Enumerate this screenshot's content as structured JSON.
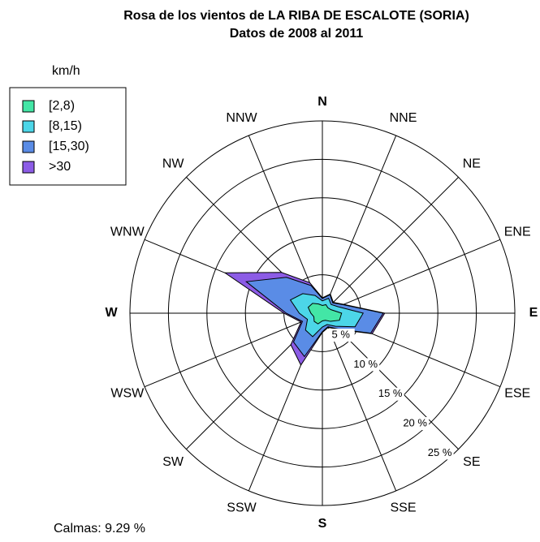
{
  "chart_data": {
    "type": "windrose",
    "title": "Rosa de los vientos de LA RIBA DE ESCALOTE (SORIA)",
    "subtitle": "Datos de  2008 al  2011",
    "legend_title": "km/h",
    "annotation": "Calmas: 9.29 %",
    "categories": [
      "N",
      "NNE",
      "NE",
      "ENE",
      "E",
      "ESE",
      "SE",
      "SSE",
      "S",
      "SSW",
      "SW",
      "WSW",
      "W",
      "WNW",
      "NW",
      "NNW"
    ],
    "series": [
      {
        "name": "[2,8)",
        "color": "#43e6a6",
        "values": [
          1.0,
          1.2,
          1.0,
          1.2,
          2.5,
          2.4,
          1.5,
          1.0,
          1.0,
          1.5,
          1.5,
          1.2,
          1.5,
          2.0,
          1.8,
          1.3
        ]
      },
      {
        "name": "[8,15)",
        "color": "#4cd6e8",
        "values": [
          0.6,
          0.9,
          0.6,
          1.0,
          2.8,
          2.2,
          0.9,
          0.6,
          0.8,
          1.8,
          1.6,
          0.9,
          1.5,
          2.5,
          1.8,
          1.2
        ]
      },
      {
        "name": "[15,30)",
        "color": "#5a8ce6",
        "values": [
          0.3,
          0.5,
          0.3,
          0.7,
          2.6,
          2.2,
          0.5,
          0.3,
          0.6,
          2.8,
          2.2,
          0.7,
          1.7,
          6.2,
          3.0,
          1.4
        ]
      },
      {
        "name": ">30",
        "color": "#8c5ce6",
        "values": [
          0.1,
          0.1,
          0.1,
          0.1,
          0.2,
          0.2,
          0.1,
          0.1,
          0.1,
          1.2,
          0.5,
          0.2,
          0.3,
          3.0,
          0.9,
          0.4
        ]
      }
    ],
    "rlim": [
      0,
      25
    ],
    "rticks": [
      {
        "value": 5,
        "label": "5 %"
      },
      {
        "value": 10,
        "label": "10 %"
      },
      {
        "value": 15,
        "label": "15 %"
      },
      {
        "value": 20,
        "label": "20 %"
      },
      {
        "value": 25,
        "label": "25 %"
      }
    ]
  }
}
